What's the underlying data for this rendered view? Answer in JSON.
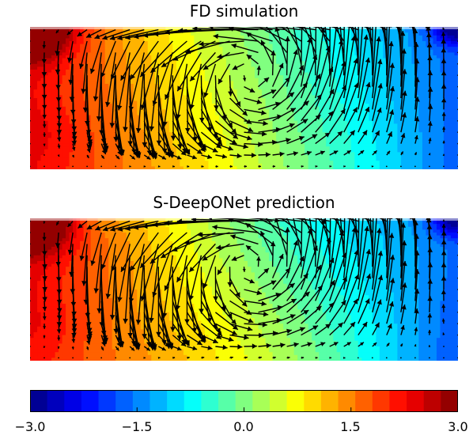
{
  "chart_data": [
    {
      "type": "heatmap",
      "title": "FD simulation",
      "variant": "fd",
      "vector_overlay": "quiver"
    },
    {
      "type": "heatmap",
      "title": "S-DeepONet prediction",
      "variant": "pred",
      "vector_overlay": "quiver"
    }
  ],
  "colorbar": {
    "range": [
      -3.0,
      3.0
    ],
    "levels": 25,
    "colormap": "jet",
    "ticks": [
      "−3.0",
      "−1.5",
      "0.0",
      "1.5",
      "3.0"
    ],
    "tick_values": [
      -3.0,
      -1.5,
      0.0,
      1.5,
      3.0
    ]
  }
}
